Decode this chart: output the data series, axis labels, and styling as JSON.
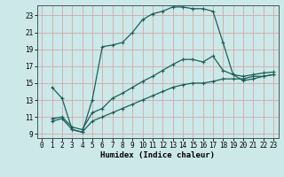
{
  "xlabel": "Humidex (Indice chaleur)",
  "bg_color": "#cce8e8",
  "grid_color": "#d4a8a8",
  "line_color": "#1a6058",
  "xlim": [
    -0.5,
    23.5
  ],
  "ylim": [
    8.5,
    24.2
  ],
  "xticks": [
    0,
    1,
    2,
    3,
    4,
    5,
    6,
    7,
    8,
    9,
    10,
    11,
    12,
    13,
    14,
    15,
    16,
    17,
    18,
    19,
    20,
    21,
    22,
    23
  ],
  "yticks": [
    9,
    11,
    13,
    15,
    17,
    19,
    21,
    23
  ],
  "line1_x": [
    1,
    2,
    3,
    4,
    5,
    6,
    7,
    8,
    9,
    10,
    11,
    12,
    13,
    14,
    15,
    16,
    17,
    18,
    19,
    20,
    21,
    22,
    23
  ],
  "line1_y": [
    14.5,
    13.2,
    9.5,
    9.2,
    13.0,
    19.3,
    19.5,
    19.8,
    21.0,
    22.5,
    23.2,
    23.5,
    24.0,
    24.0,
    23.8,
    23.8,
    23.5,
    19.8,
    16.0,
    15.3,
    15.5,
    15.8,
    16.0
  ],
  "line2_x": [
    1,
    2,
    3,
    4,
    5,
    6,
    7,
    8,
    9,
    10,
    11,
    12,
    13,
    14,
    15,
    16,
    17,
    18,
    19,
    20,
    21,
    22,
    23
  ],
  "line2_y": [
    10.8,
    11.0,
    9.8,
    9.5,
    11.5,
    12.0,
    13.2,
    13.8,
    14.5,
    15.2,
    15.8,
    16.5,
    17.2,
    17.8,
    17.8,
    17.5,
    18.2,
    16.5,
    16.0,
    15.8,
    16.0,
    16.2,
    16.3
  ],
  "line3_x": [
    1,
    2,
    3,
    4,
    5,
    6,
    7,
    8,
    9,
    10,
    11,
    12,
    13,
    14,
    15,
    16,
    17,
    18,
    19,
    20,
    21,
    22,
    23
  ],
  "line3_y": [
    10.5,
    10.8,
    9.5,
    9.2,
    10.5,
    11.0,
    11.5,
    12.0,
    12.5,
    13.0,
    13.5,
    14.0,
    14.5,
    14.8,
    15.0,
    15.0,
    15.2,
    15.5,
    15.5,
    15.5,
    15.8,
    15.8,
    16.0
  ],
  "tick_fontsize": 5.5,
  "xlabel_fontsize": 6.5
}
